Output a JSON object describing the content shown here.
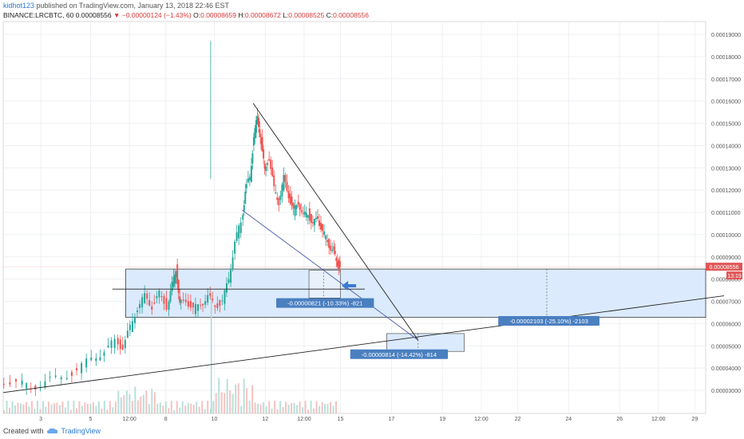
{
  "header": {
    "user": "kidhot123",
    "published": " published on TradingView.com, January 13, 2018 22:46 EST",
    "symbol": "BINANCE:LRCBTC, 60",
    "last": "0.00008556",
    "change": "▼ −0.00000124 (−1.43%)",
    "o_label": "O:",
    "o": "0.00008659",
    "h_label": "H:",
    "h": "0.00008672",
    "l_label": "L:",
    "l": "0.00008525",
    "c_label": "C:",
    "c": "0.00008556"
  },
  "footer": {
    "created": "Created with",
    "brand": "TradingView",
    "logo_icon": "tradingview-cloud-icon"
  },
  "colors": {
    "up": "#26a69a",
    "down": "#ef5350",
    "zone_fill": "#dbeafc",
    "label_bg": "#4a7fc0",
    "price_tag": "#e05656"
  },
  "chart_data": {
    "type": "candlestick",
    "title": "",
    "y_axis_ticks": [
      "0.00019000",
      "0.00018000",
      "0.00017000",
      "0.00016000",
      "0.00015000",
      "0.00014000",
      "0.00013000",
      "0.00012000",
      "0.00011000",
      "0.00010000",
      "0.00009000",
      "0.00008000",
      "0.00007000",
      "0.00006000",
      "0.00005000",
      "0.00004000",
      "0.00003000"
    ],
    "x_axis_ticks": [
      "3",
      "5",
      "12:00",
      "8",
      "10",
      "12",
      "12:00",
      "15",
      "17",
      "19",
      "12:00",
      "22",
      "24",
      "26",
      "12:00",
      "29"
    ],
    "ylim": [
      2.1e-05,
      0.0001955
    ],
    "last_price_label": "0.00008556",
    "countdown_label": "13:19",
    "price_path": [
      [
        0,
        3.45e-05
      ],
      [
        0.75,
        3.35e-05
      ],
      [
        1.3,
        3.1e-05
      ],
      [
        1.9,
        3.4e-05
      ],
      [
        2.6,
        3.55e-05
      ],
      [
        3.2,
        3.95e-05
      ],
      [
        3.8,
        4.4e-05
      ],
      [
        4.3,
        4.8e-05
      ],
      [
        4.7,
        5.2e-05
      ],
      [
        5.0,
        4.95e-05
      ],
      [
        5.3,
        5.8e-05
      ],
      [
        5.6,
        6.75e-05
      ],
      [
        5.9,
        7.2e-05
      ],
      [
        6.2,
        6.8e-05
      ],
      [
        6.5,
        7.3e-05
      ],
      [
        6.8,
        6.8e-05
      ],
      [
        7.0,
        7.7e-05
      ],
      [
        7.15,
        8.5e-05
      ],
      [
        7.3,
        6.8e-05
      ],
      [
        7.6,
        7.1e-05
      ],
      [
        7.9,
        6.6e-05
      ],
      [
        8.2,
        6.9e-05
      ],
      [
        8.5,
        7.2e-05
      ],
      [
        8.8,
        6.8e-05
      ],
      [
        9.1,
        7e-05
      ],
      [
        9.35,
        8e-05
      ],
      [
        9.6,
        9.7e-05
      ],
      [
        9.85,
        0.000105
      ],
      [
        10.0,
        0.00012
      ],
      [
        10.2,
        0.000125
      ],
      [
        10.35,
        0.000145
      ],
      [
        10.5,
        0.000152
      ],
      [
        10.65,
        0.000142
      ],
      [
        10.8,
        0.000128
      ],
      [
        11.0,
        0.000135
      ],
      [
        11.2,
        0.00012
      ],
      [
        11.4,
        0.000115
      ],
      [
        11.6,
        0.000125
      ],
      [
        11.8,
        0.000118
      ],
      [
        12.0,
        0.00011
      ],
      [
        12.2,
        0.000115
      ],
      [
        12.4,
        0.000108
      ],
      [
        12.6,
        0.00011
      ],
      [
        12.8,
        0.000104
      ],
      [
        13.0,
        0.000108
      ],
      [
        13.2,
        0.000101
      ],
      [
        13.4,
        9.7e-05
      ],
      [
        13.6,
        9.3e-05
      ],
      [
        13.75,
        8.8e-05
      ],
      [
        13.9,
        8.556e-05
      ]
    ],
    "volume_area": true,
    "drawings": {
      "zone": {
        "top": 8.45e-05,
        "bottom": 6.28e-05
      },
      "falling_wedge_upper": [
        [
          10.3,
          0.000159
        ],
        [
          17.1,
          5.25e-05
        ]
      ],
      "falling_wedge_lower": [
        [
          9.85,
          0.000111
        ],
        [
          17.1,
          5.25e-05
        ]
      ],
      "support_line": [
        [
          0,
          2.9e-05
        ],
        [
          29.7,
          7.25e-05
        ]
      ],
      "resistance_line": [
        [
          4.5,
          7.55e-05
        ],
        [
          14.9,
          7.55e-05
        ]
      ],
      "target_box": {
        "from": 15.8,
        "to": 19.0,
        "top": 5.55e-05,
        "bottom": 4.75e-05
      }
    },
    "annotations": [
      "-0.00000821 (-10.33%) -821",
      "-0.00000814 (-14.42%) -814",
      "-0.00002103 (-25.10%) -2103"
    ]
  }
}
